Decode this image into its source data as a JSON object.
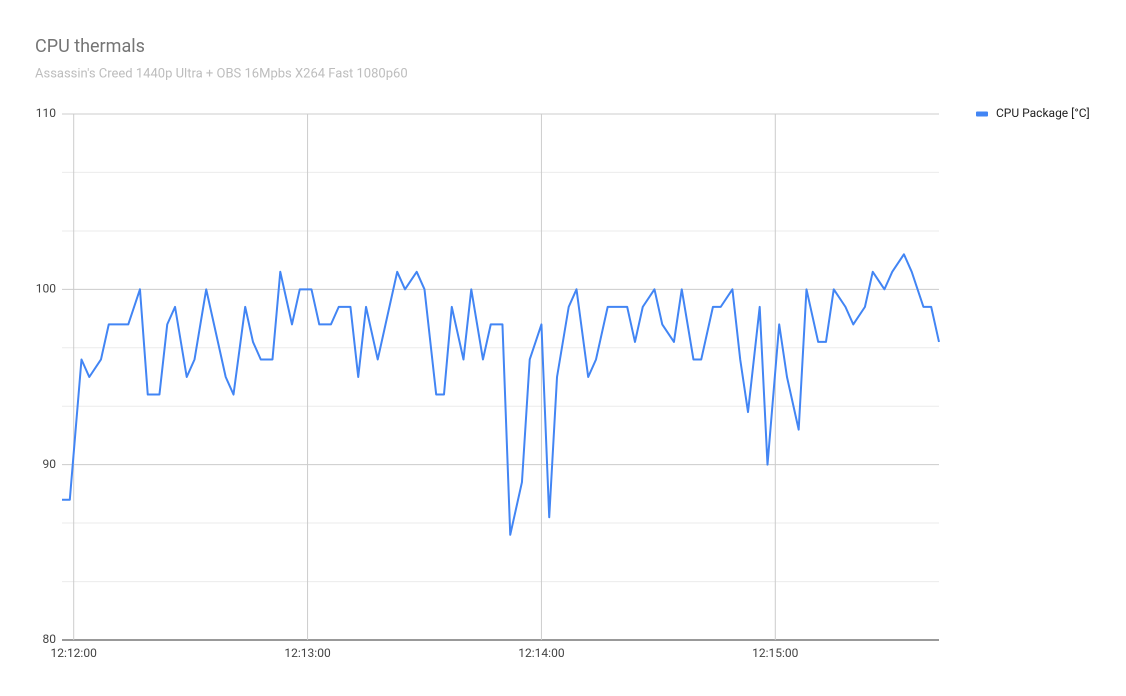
{
  "chart_data": {
    "type": "line",
    "title": "CPU thermals",
    "subtitle": "Assassin's Creed 1440p Ultra + OBS 16Mpbs X264 Fast 1080p60",
    "x": [
      "12:11:57",
      "12:11:59",
      "12:12:02",
      "12:12:04",
      "12:12:07",
      "12:12:09",
      "12:12:12",
      "12:12:14",
      "12:12:17",
      "12:12:19",
      "12:12:22",
      "12:12:24",
      "12:12:26",
      "12:12:29",
      "12:12:31",
      "12:12:34",
      "12:12:36",
      "12:12:39",
      "12:12:41",
      "12:12:44",
      "12:12:46",
      "12:12:48",
      "12:12:51",
      "12:12:53",
      "12:12:56",
      "12:12:58",
      "12:13:01",
      "12:13:03",
      "12:13:06",
      "12:13:08",
      "12:13:11",
      "12:13:13",
      "12:13:15",
      "12:13:18",
      "12:13:20",
      "12:13:23",
      "12:13:25",
      "12:13:28",
      "12:13:30",
      "12:13:33",
      "12:13:35",
      "12:13:37",
      "12:13:40",
      "12:13:42",
      "12:13:45",
      "12:13:47",
      "12:13:50",
      "12:13:52",
      "12:13:55",
      "12:13:57",
      "12:14:00",
      "12:14:02",
      "12:14:04",
      "12:14:07",
      "12:14:09",
      "12:14:12",
      "12:14:14",
      "12:14:17",
      "12:14:19",
      "12:14:22",
      "12:14:24",
      "12:14:26",
      "12:14:29",
      "12:14:31",
      "12:14:34",
      "12:14:36",
      "12:14:39",
      "12:14:41",
      "12:14:44",
      "12:14:46",
      "12:14:49",
      "12:14:51",
      "12:14:53",
      "12:14:56",
      "12:14:58",
      "12:15:01",
      "12:15:03",
      "12:15:06",
      "12:15:08",
      "12:15:11",
      "12:15:13",
      "12:15:15",
      "12:15:18",
      "12:15:20",
      "12:15:23",
      "12:15:25",
      "12:15:28",
      "12:15:30",
      "12:15:33",
      "12:15:35",
      "12:15:38",
      "12:15:40",
      "12:15:42"
    ],
    "series": [
      {
        "name": "CPU Package [°C]",
        "color": "#4285f4",
        "values": [
          88,
          88,
          96,
          95,
          96,
          98,
          98,
          98,
          100,
          94,
          94,
          98,
          99,
          95,
          96,
          100,
          98,
          95,
          94,
          99,
          97,
          96,
          96,
          101,
          98,
          100,
          100,
          98,
          98,
          99,
          99,
          95,
          99,
          96,
          98,
          101,
          100,
          101,
          100,
          94,
          94,
          99,
          96,
          100,
          96,
          98,
          98,
          86,
          89,
          96,
          98,
          87,
          95,
          99,
          100,
          95,
          96,
          99,
          99,
          99,
          97,
          99,
          100,
          98,
          97,
          100,
          96,
          96,
          99,
          99,
          100,
          96,
          93,
          99,
          90,
          98,
          95,
          92,
          100,
          97,
          97,
          100,
          99,
          98,
          99,
          101,
          100,
          101,
          102,
          101,
          99,
          99,
          97
        ]
      }
    ],
    "xlim": [
      "12:11:57",
      "12:15:42"
    ],
    "xticks": [
      "12:12:00",
      "12:13:00",
      "12:14:00",
      "12:15:00"
    ],
    "ylim": [
      80,
      110
    ],
    "yticks": [
      80,
      90,
      100,
      110
    ],
    "y_minor_grid": [
      83.33,
      86.67,
      93.33,
      96.67,
      103.33,
      106.67
    ],
    "grid": true,
    "legend": "right"
  }
}
